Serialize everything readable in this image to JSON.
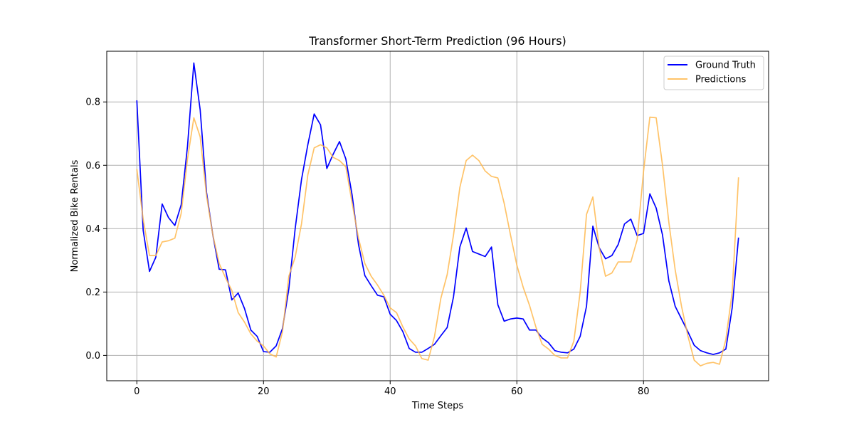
{
  "chart_data": {
    "type": "line",
    "title": "Transformer Short-Term Prediction (96 Hours)",
    "xlabel": "Time Steps",
    "ylabel": "Normalized Bike Rentals",
    "xlim": [
      -4.75,
      99.75
    ],
    "ylim": [
      -0.08,
      0.96
    ],
    "xticks": [
      0,
      20,
      40,
      60,
      80
    ],
    "yticks": [
      0.0,
      0.2,
      0.4,
      0.6,
      0.8
    ],
    "grid": true,
    "legend_position": "top-right",
    "series": [
      {
        "name": "Ground Truth",
        "color": "#0000ff",
        "values": [
          0.805,
          0.395,
          0.265,
          0.31,
          0.478,
          0.435,
          0.41,
          0.475,
          0.66,
          0.923,
          0.775,
          0.515,
          0.38,
          0.272,
          0.27,
          0.175,
          0.197,
          0.148,
          0.08,
          0.06,
          0.012,
          0.01,
          0.03,
          0.085,
          0.21,
          0.4,
          0.555,
          0.665,
          0.762,
          0.728,
          0.59,
          0.635,
          0.675,
          0.62,
          0.505,
          0.35,
          0.252,
          0.22,
          0.19,
          0.185,
          0.13,
          0.11,
          0.075,
          0.022,
          0.01,
          0.01,
          0.022,
          0.035,
          0.062,
          0.088,
          0.185,
          0.342,
          0.402,
          0.328,
          0.32,
          0.312,
          0.342,
          0.16,
          0.108,
          0.115,
          0.118,
          0.115,
          0.08,
          0.08,
          0.055,
          0.04,
          0.015,
          0.01,
          0.008,
          0.02,
          0.06,
          0.155,
          0.408,
          0.34,
          0.305,
          0.315,
          0.35,
          0.415,
          0.43,
          0.378,
          0.385,
          0.51,
          0.465,
          0.38,
          0.235,
          0.155,
          0.115,
          0.075,
          0.032,
          0.015,
          0.008,
          0.003,
          0.008,
          0.02,
          0.15,
          0.372
        ]
      },
      {
        "name": "Predictions",
        "color": "#ffb84d",
        "values": [
          0.588,
          0.43,
          0.315,
          0.315,
          0.358,
          0.362,
          0.37,
          0.448,
          0.62,
          0.75,
          0.69,
          0.505,
          0.38,
          0.29,
          0.245,
          0.205,
          0.135,
          0.105,
          0.068,
          0.045,
          0.03,
          0.005,
          -0.005,
          0.075,
          0.25,
          0.31,
          0.415,
          0.57,
          0.655,
          0.665,
          0.655,
          0.625,
          0.615,
          0.595,
          0.48,
          0.37,
          0.29,
          0.25,
          0.222,
          0.19,
          0.15,
          0.135,
          0.09,
          0.052,
          0.03,
          -0.01,
          -0.015,
          0.06,
          0.18,
          0.255,
          0.38,
          0.53,
          0.615,
          0.632,
          0.615,
          0.582,
          0.565,
          0.56,
          0.48,
          0.38,
          0.285,
          0.215,
          0.158,
          0.09,
          0.035,
          0.02,
          0.0,
          -0.008,
          -0.008,
          0.045,
          0.2,
          0.445,
          0.5,
          0.34,
          0.25,
          0.26,
          0.295,
          0.295,
          0.295,
          0.365,
          0.58,
          0.752,
          0.75,
          0.6,
          0.42,
          0.27,
          0.155,
          0.062,
          -0.015,
          -0.033,
          -0.025,
          -0.022,
          -0.028,
          0.05,
          0.2,
          0.562
        ]
      }
    ]
  }
}
